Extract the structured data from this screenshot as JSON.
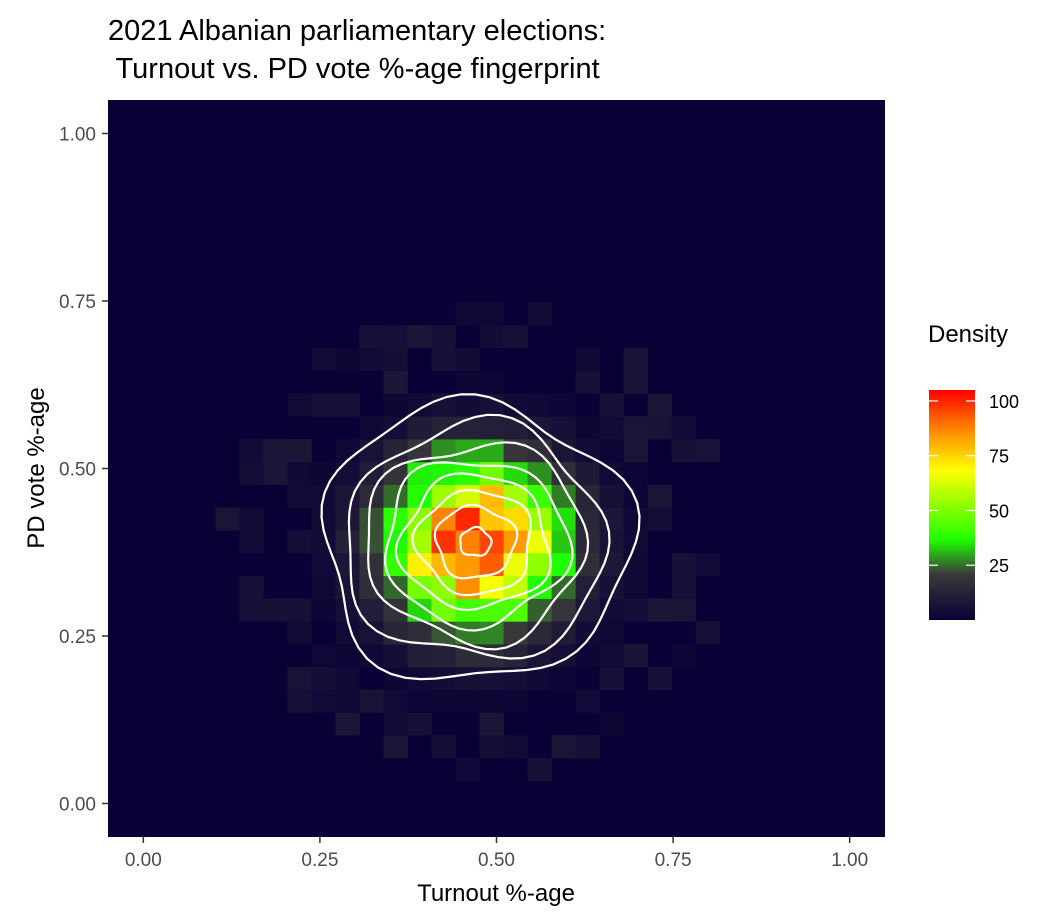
{
  "chart_data": {
    "type": "heatmap",
    "title": "2021 Albanian parliamentary elections:",
    "subtitle": " Turnout vs. PD vote %-age fingerprint",
    "xlabel": "Turnout %-age",
    "ylabel": "PD vote %-age",
    "xlim": [
      -0.05,
      1.05
    ],
    "ylim": [
      -0.05,
      1.05
    ],
    "x_ticks": [
      0.0,
      0.25,
      0.5,
      0.75,
      1.0
    ],
    "x_tick_labels": [
      "0.00",
      "0.25",
      "0.50",
      "0.75",
      "1.00"
    ],
    "y_ticks": [
      0.0,
      0.25,
      0.5,
      0.75,
      1.0
    ],
    "y_tick_labels": [
      "0.00",
      "0.25",
      "0.50",
      "0.75",
      "1.00"
    ],
    "bin_width": 0.034,
    "density_peak": {
      "x": 0.47,
      "y": 0.39,
      "value": 100
    },
    "density_spread": {
      "x": 0.085,
      "y": 0.085
    },
    "contour_levels": [
      5,
      12,
      22,
      35,
      50,
      66,
      82,
      97
    ],
    "legend": {
      "title": "Density",
      "breaks": [
        25,
        50,
        75,
        100
      ],
      "labels": [
        "25",
        "50",
        "75",
        "100"
      ],
      "range": [
        0,
        105
      ],
      "position": "right"
    },
    "colors": {
      "panel_background": "#0a0036",
      "gradient": [
        "#0a0036",
        "#3a3a3a",
        "#1fff00",
        "#ffff00",
        "#ff8c00",
        "#ff0000"
      ],
      "contour": "#ffffff"
    }
  }
}
